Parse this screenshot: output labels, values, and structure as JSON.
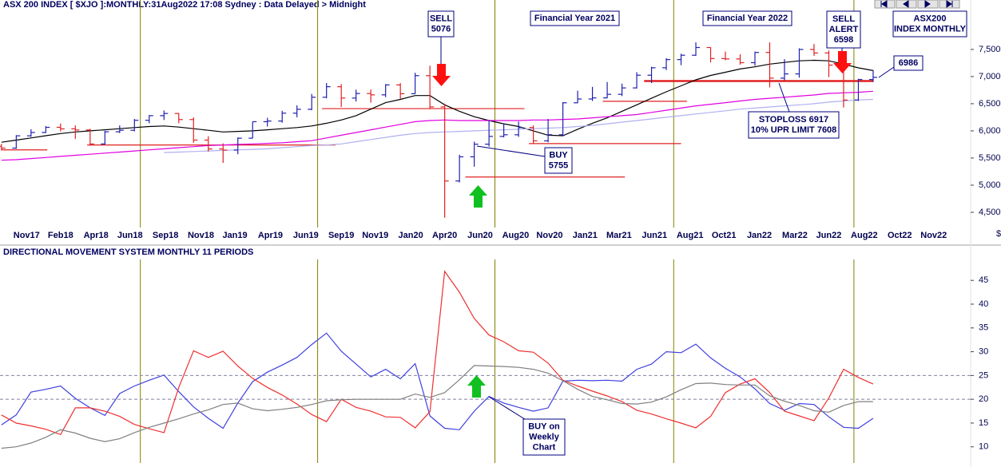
{
  "chart_data": [
    {
      "type": "ohlc",
      "title": "ASX 200 INDEX [ $XJO ]:MONTHLY:31Aug2022 17:08 Sydney : Data Delayed > Midnight",
      "currency_label": "$",
      "xlim": [
        -0.1,
        65.6
      ],
      "xticks": [
        {
          "value": 1.7,
          "label": "Nov17"
        },
        {
          "value": 4.0,
          "label": "Feb18"
        },
        {
          "value": 6.4,
          "label": "Apr18"
        },
        {
          "value": 8.7,
          "label": "Jun18"
        },
        {
          "value": 11.1,
          "label": "Sep18"
        },
        {
          "value": 13.5,
          "label": "Nov18"
        },
        {
          "value": 15.8,
          "label": "Jan19"
        },
        {
          "value": 18.2,
          "label": "Apr19"
        },
        {
          "value": 20.6,
          "label": "Jun19"
        },
        {
          "value": 23.0,
          "label": "Sep19"
        },
        {
          "value": 25.3,
          "label": "Nov19"
        },
        {
          "value": 27.7,
          "label": "Jan20"
        },
        {
          "value": 30.0,
          "label": "Apr20"
        },
        {
          "value": 32.4,
          "label": "Jun20"
        },
        {
          "value": 34.8,
          "label": "Aug20"
        },
        {
          "value": 37.1,
          "label": "Nov20"
        },
        {
          "value": 39.5,
          "label": "Jan21"
        },
        {
          "value": 41.8,
          "label": "Mar21"
        },
        {
          "value": 44.2,
          "label": "Jun21"
        },
        {
          "value": 46.6,
          "label": "Aug21"
        },
        {
          "value": 48.9,
          "label": "Oct21"
        },
        {
          "value": 51.3,
          "label": "Jan22"
        },
        {
          "value": 53.7,
          "label": "Mar22"
        },
        {
          "value": 56.0,
          "label": "Jun22"
        },
        {
          "value": 58.4,
          "label": "Aug22"
        },
        {
          "value": 60.8,
          "label": "Oct22"
        },
        {
          "value": 63.1,
          "label": "Nov22"
        }
      ],
      "ylim": [
        4220,
        8410
      ],
      "yticks": [
        {
          "value": 4500,
          "label": "4,500"
        },
        {
          "value": 5000,
          "label": "5,000"
        },
        {
          "value": 5500,
          "label": "5,500"
        },
        {
          "value": 6000,
          "label": "6,000"
        },
        {
          "value": 6500,
          "label": "6,500"
        },
        {
          "value": 7000,
          "label": "7,000"
        },
        {
          "value": 7500,
          "label": "7,500"
        }
      ],
      "up_color": "#2020b0",
      "down_color": "#e02020",
      "open": [
        5715,
        5682,
        5909,
        5970,
        6065,
        6037,
        6016,
        5759,
        5983,
        6011,
        6195,
        6280,
        6320,
        6208,
        5830,
        5667,
        5646,
        5865,
        6169,
        6181,
        6326,
        6397,
        6619,
        6813,
        6604,
        6688,
        6663,
        6846,
        6684,
        7017,
        6441,
        5077,
        5522,
        5755,
        5898,
        5928,
        6061,
        5816,
        5928,
        6517,
        6587,
        6607,
        6673,
        6791,
        7025,
        7162,
        7313,
        7393,
        7535,
        7332,
        7324,
        7256,
        7444,
        6971,
        7049,
        7499,
        7435,
        7211,
        6568,
        6945
      ],
      "high": [
        5760,
        5920,
        6030,
        6090,
        6135,
        6100,
        6040,
        6000,
        6100,
        6220,
        6290,
        6375,
        6330,
        6250,
        5900,
        5770,
        5880,
        6170,
        6240,
        6370,
        6470,
        6680,
        6880,
        6860,
        6760,
        6760,
        6860,
        6880,
        7070,
        7200,
        6500,
        5560,
        5800,
        6200,
        6140,
        6170,
        6100,
        6220,
        6530,
        6740,
        6810,
        6900,
        6870,
        7080,
        7180,
        7340,
        7420,
        7630,
        7540,
        7460,
        7410,
        7460,
        7630,
        7320,
        7520,
        7600,
        7480,
        7240,
        6960,
        7120
      ],
      "low": [
        5640,
        5670,
        5890,
        5960,
        5990,
        5850,
        5730,
        5750,
        5960,
        5990,
        6140,
        6200,
        6140,
        5780,
        5620,
        5410,
        5570,
        5860,
        6080,
        6150,
        6250,
        6380,
        6600,
        6440,
        6540,
        6520,
        6620,
        6590,
        6680,
        6400,
        4400,
        5050,
        5340,
        5710,
        5880,
        5890,
        5760,
        5790,
        5900,
        6510,
        6550,
        6600,
        6640,
        6780,
        6880,
        7120,
        7210,
        7380,
        7260,
        7300,
        7220,
        7200,
        6800,
        6930,
        6980,
        7380,
        6990,
        6430,
        6550,
        6900
      ],
      "close": [
        5682,
        5909,
        5970,
        6065,
        6037,
        6016,
        5759,
        5983,
        6011,
        6195,
        6280,
        6320,
        6208,
        5830,
        5667,
        5646,
        5865,
        6169,
        6181,
        6326,
        6397,
        6619,
        6813,
        6604,
        6688,
        6663,
        6846,
        6684,
        7017,
        6441,
        5077,
        5522,
        5755,
        5898,
        5928,
        6061,
        5816,
        5928,
        6517,
        6587,
        6607,
        6673,
        6791,
        7025,
        7162,
        7313,
        7393,
        7535,
        7332,
        7324,
        7256,
        7444,
        6971,
        7049,
        7499,
        7435,
        7211,
        6568,
        6945,
        6986
      ],
      "series": [
        {
          "color": "#000000",
          "values": [
            5790,
            5830,
            5870,
            5910,
            5950,
            5980,
            6000,
            6020,
            6040,
            6060,
            6080,
            6090,
            6070,
            6040,
            6010,
            5980,
            5990,
            6000,
            6020,
            6040,
            6060,
            6090,
            6140,
            6200,
            6280,
            6400,
            6520,
            6580,
            6650,
            6650,
            6480,
            6360,
            6260,
            6190,
            6130,
            6080,
            6000,
            5920,
            5910,
            6030,
            6140,
            6240,
            6360,
            6480,
            6600,
            6720,
            6830,
            6940,
            7020,
            7080,
            7140,
            7180,
            7230,
            7260,
            7290,
            7300,
            7290,
            7230,
            7160,
            7110
          ]
        },
        {
          "color": "#e000e0",
          "values": [
            5460,
            5470,
            5490,
            5510,
            5530,
            5550,
            5570,
            5590,
            5610,
            5630,
            5650,
            5670,
            5690,
            5710,
            5730,
            5740,
            5750,
            5760,
            5770,
            5780,
            5800,
            5820,
            5870,
            5920,
            5970,
            6020,
            6070,
            6120,
            6170,
            6190,
            6200,
            6190,
            6190,
            6190,
            6190,
            6190,
            6200,
            6200,
            6210,
            6220,
            6240,
            6260,
            6280,
            6300,
            6340,
            6380,
            6420,
            6460,
            6490,
            6520,
            6550,
            6580,
            6600,
            6620,
            6640,
            6660,
            6690,
            6700,
            6710,
            6730
          ]
        },
        {
          "color": "#b0b0f0",
          "values": [
            null,
            null,
            null,
            null,
            null,
            null,
            null,
            null,
            null,
            null,
            null,
            5600,
            5610,
            5620,
            5630,
            5640,
            5650,
            5660,
            5670,
            5690,
            5710,
            5730,
            5740,
            5760,
            5800,
            5840,
            5880,
            5920,
            5950,
            5970,
            5980,
            5990,
            6000,
            6010,
            6020,
            6030,
            6040,
            6050,
            6060,
            6080,
            6100,
            6130,
            6160,
            6190,
            6220,
            6250,
            6280,
            6310,
            6340,
            6370,
            6400,
            6420,
            6440,
            6460,
            6480,
            6500,
            6530,
            6550,
            6570,
            6580
          ]
        }
      ],
      "levels": [
        {
          "value": 5650,
          "from": 0,
          "to": 3.1
        },
        {
          "value": 5740,
          "from": 5.8,
          "to": 22.6
        },
        {
          "value": 6410,
          "from": 21.7,
          "to": 35.4
        },
        {
          "value": 5765,
          "from": 35.7,
          "to": 46.0
        },
        {
          "value": 5150,
          "from": 31.4,
          "to": 42.2
        },
        {
          "value": 6545,
          "from": 40.7,
          "to": 46.4
        },
        {
          "value": 6917,
          "from": 43.5,
          "to": 59.0,
          "thick": true
        }
      ],
      "level_color": "#e02020",
      "vlines": [
        9.4,
        21.4,
        33.4,
        45.5,
        57.7
      ],
      "vline_color": "#808000",
      "annotations": [
        {
          "lines": [
            "SELL",
            "5076"
          ]
        },
        {
          "lines": [
            "Financial Year 2021"
          ]
        },
        {
          "lines": [
            "Financial Year 2022"
          ]
        },
        {
          "lines": [
            "SELL",
            "ALERT",
            "6598"
          ]
        },
        {
          "lines": [
            "ASX200",
            "INDEX MONTHLY"
          ]
        },
        {
          "lines": [
            "6986"
          ]
        },
        {
          "lines": [
            "STOPLOSS 6917",
            "10% UPR LIMIT 7608"
          ]
        },
        {
          "lines": [
            "BUY",
            "5755"
          ]
        }
      ]
    },
    {
      "type": "line",
      "title": "DIRECTIONAL MOVEMENT SYSTEM MONTHLY 11 PERIODS",
      "xlim": [
        -0.1,
        65.6
      ],
      "ylim": [
        6.6,
        49.4
      ],
      "yticks": [
        10,
        15,
        20,
        25,
        30,
        35,
        40,
        45
      ],
      "hlines": [
        25,
        20
      ],
      "hline_color": "#8080a0",
      "vlines": [
        9.4,
        21.4,
        33.4,
        45.5,
        57.7
      ],
      "vline_color": "#808000",
      "series": [
        {
          "color": "#4040e0",
          "values": [
            14.6,
            16.7,
            21.5,
            22.1,
            22.8,
            20.2,
            18.2,
            16.6,
            21.2,
            22.8,
            24.0,
            25.1,
            21.6,
            18.4,
            16.0,
            13.9,
            19.2,
            23.7,
            25.7,
            27.2,
            28.8,
            31.5,
            33.9,
            30.1,
            27.4,
            24.7,
            26.3,
            24.3,
            27.5,
            16.5,
            13.9,
            13.6,
            17.5,
            20.6,
            19.2,
            18.3,
            17.5,
            18.2,
            23.8,
            24.0,
            23.9,
            24.0,
            23.8,
            26.3,
            27.4,
            30.0,
            29.8,
            31.6,
            28.7,
            26.5,
            24.7,
            22.2,
            19.1,
            17.7,
            19.1,
            18.9,
            16.3,
            14.1,
            13.9,
            16.0
          ]
        },
        {
          "color": "#f03030",
          "values": [
            16.7,
            15.0,
            14.4,
            13.7,
            12.6,
            18.2,
            18.2,
            17.5,
            16.4,
            14.7,
            13.8,
            13.0,
            22.5,
            30.2,
            28.8,
            30.1,
            27.0,
            24.4,
            22.5,
            20.9,
            19.0,
            16.8,
            15.3,
            20.0,
            18.3,
            17.5,
            16.3,
            16.2,
            14.0,
            17.4,
            46.9,
            42.5,
            37.0,
            33.5,
            32.1,
            30.2,
            29.9,
            27.6,
            24.0,
            22.8,
            21.7,
            20.7,
            19.5,
            17.7,
            16.9,
            15.9,
            15.0,
            14.0,
            16.4,
            21.4,
            23.2,
            24.3,
            21.4,
            17.5,
            16.5,
            15.5,
            20.3,
            26.3,
            24.6,
            23.2
          ]
        },
        {
          "color": "#808080",
          "values": [
            9.7,
            10.0,
            10.8,
            12.0,
            13.6,
            12.9,
            11.8,
            11.1,
            11.7,
            13.0,
            14.1,
            15.0,
            15.9,
            16.9,
            17.8,
            18.9,
            19.2,
            18.0,
            17.6,
            17.9,
            18.3,
            18.9,
            19.7,
            19.9,
            20.0,
            20.0,
            20.0,
            20.0,
            21.1,
            20.4,
            21.4,
            24.1,
            27.1,
            27.0,
            26.9,
            26.7,
            26.3,
            25.5,
            23.9,
            22.1,
            20.6,
            19.9,
            19.1,
            19.0,
            19.4,
            20.5,
            22.0,
            23.3,
            23.4,
            23.1,
            23.0,
            23.0,
            20.7,
            19.6,
            18.7,
            17.6,
            17.3,
            18.7,
            19.5,
            19.5
          ]
        }
      ],
      "annotations": [
        {
          "lines": [
            "BUY on",
            "Weekly",
            "Chart"
          ]
        }
      ]
    }
  ]
}
